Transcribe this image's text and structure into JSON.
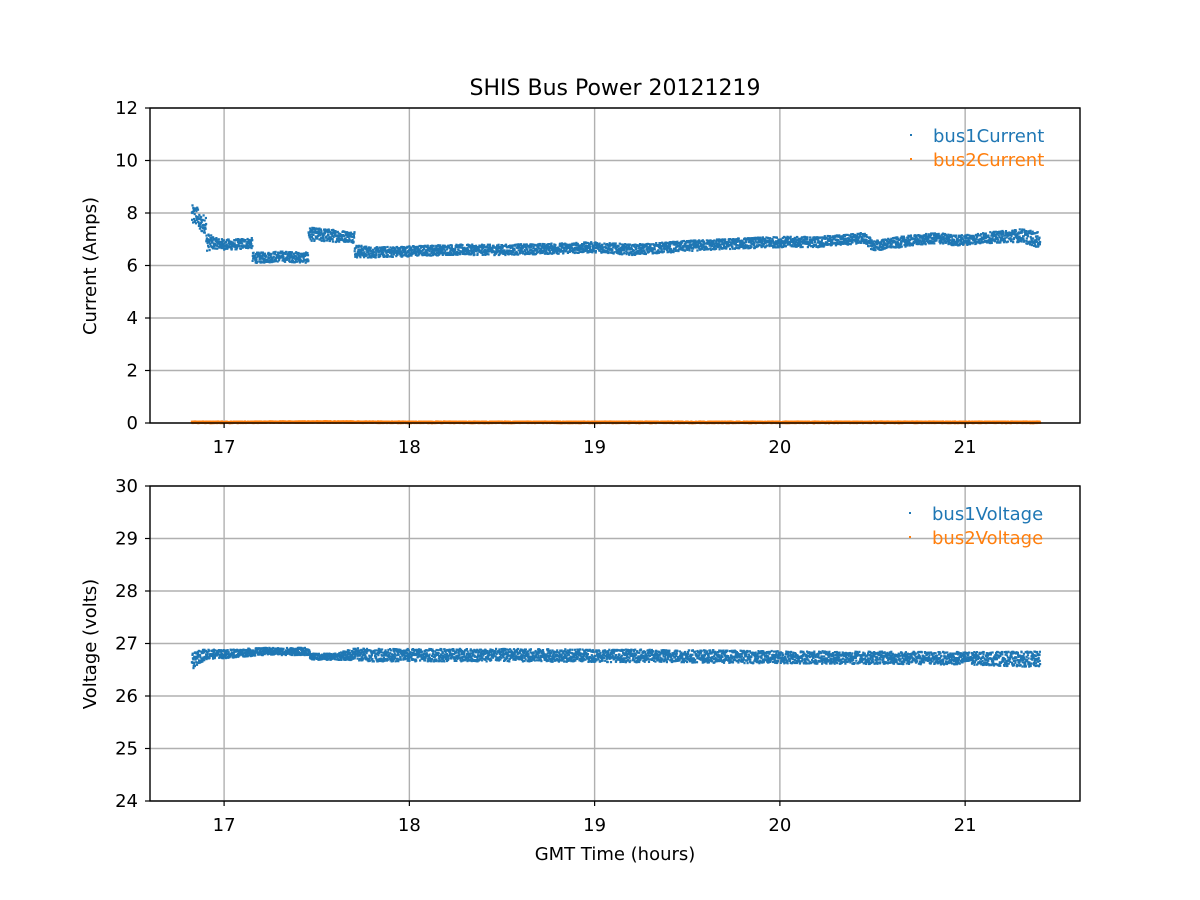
{
  "chart_data": [
    {
      "type": "scatter",
      "title": "SHIS Bus Power 20121219",
      "xlabel": "",
      "ylabel": "Current (Amps)",
      "xlim": [
        16.6,
        21.62
      ],
      "ylim": [
        0,
        12
      ],
      "x_ticks": [
        "17",
        "18",
        "19",
        "20",
        "21"
      ],
      "y_ticks": [
        "0",
        "2",
        "4",
        "6",
        "8",
        "10",
        "12"
      ],
      "grid": true,
      "legend_position": "top-right",
      "series": [
        {
          "name": "bus1Current",
          "color": "#1f77b4",
          "x": [
            16.82,
            16.86,
            16.9,
            16.95,
            17.0,
            17.05,
            17.12,
            17.15,
            17.2,
            17.3,
            17.44,
            17.45,
            17.55,
            17.68,
            17.7,
            17.8,
            18.0,
            18.2,
            18.5,
            18.8,
            19.0,
            19.2,
            19.5,
            19.8,
            20.0,
            20.2,
            20.45,
            20.5,
            20.7,
            20.85,
            20.95,
            21.1,
            21.3,
            21.4
          ],
          "y": [
            7.9,
            7.6,
            6.9,
            6.85,
            6.8,
            6.8,
            6.85,
            6.3,
            6.3,
            6.35,
            6.3,
            7.2,
            7.15,
            7.1,
            6.55,
            6.5,
            6.55,
            6.6,
            6.6,
            6.65,
            6.7,
            6.6,
            6.75,
            6.85,
            6.9,
            6.9,
            7.05,
            6.75,
            6.95,
            7.05,
            6.95,
            7.05,
            7.15,
            6.95
          ],
          "spread": [
            0.4,
            0.35,
            0.35,
            0.2,
            0.2,
            0.2,
            0.2,
            0.2,
            0.2,
            0.2,
            0.2,
            0.25,
            0.25,
            0.2,
            0.25,
            0.2,
            0.2,
            0.2,
            0.2,
            0.2,
            0.2,
            0.2,
            0.2,
            0.2,
            0.2,
            0.2,
            0.2,
            0.2,
            0.2,
            0.2,
            0.2,
            0.2,
            0.25,
            0.3
          ]
        },
        {
          "name": "bus2Current",
          "color": "#ff7f0e",
          "x": [
            16.82,
            16.9,
            17.0,
            17.5,
            18.0,
            18.5,
            19.0,
            19.5,
            20.0,
            20.5,
            21.0,
            21.4
          ],
          "y": [
            0.03,
            0.03,
            0.03,
            0.04,
            0.03,
            0.03,
            0.03,
            0.03,
            0.03,
            0.03,
            0.03,
            0.03
          ],
          "spread": [
            0.03,
            0.03,
            0.03,
            0.03,
            0.03,
            0.03,
            0.03,
            0.03,
            0.03,
            0.03,
            0.03,
            0.03
          ]
        }
      ]
    },
    {
      "type": "scatter",
      "title": "",
      "xlabel": "GMT Time (hours)",
      "ylabel": "Voltage (volts)",
      "xlim": [
        16.6,
        21.62
      ],
      "ylim": [
        24,
        30
      ],
      "x_ticks": [
        "17",
        "18",
        "19",
        "20",
        "21"
      ],
      "y_ticks": [
        "24",
        "25",
        "26",
        "27",
        "28",
        "29",
        "30"
      ],
      "grid": true,
      "legend_position": "top-right",
      "series": [
        {
          "name": "bus1Voltage",
          "color": "#1f77b4",
          "x": [
            16.82,
            16.86,
            16.9,
            16.95,
            17.0,
            17.2,
            17.45,
            17.46,
            17.6,
            17.7,
            17.8,
            18.0,
            18.5,
            19.0,
            19.5,
            20.0,
            20.5,
            21.0,
            21.4
          ],
          "y": [
            26.65,
            26.75,
            26.8,
            26.8,
            26.8,
            26.85,
            26.85,
            26.75,
            26.75,
            26.8,
            26.78,
            26.78,
            26.78,
            26.77,
            26.76,
            26.74,
            26.73,
            26.72,
            26.7
          ],
          "spread": [
            0.15,
            0.12,
            0.1,
            0.08,
            0.08,
            0.07,
            0.07,
            0.06,
            0.06,
            0.12,
            0.12,
            0.12,
            0.12,
            0.12,
            0.12,
            0.12,
            0.12,
            0.12,
            0.15
          ]
        },
        {
          "name": "bus2Voltage",
          "color": "#ff7f0e",
          "x": [],
          "y": [],
          "spread": []
        }
      ]
    }
  ]
}
